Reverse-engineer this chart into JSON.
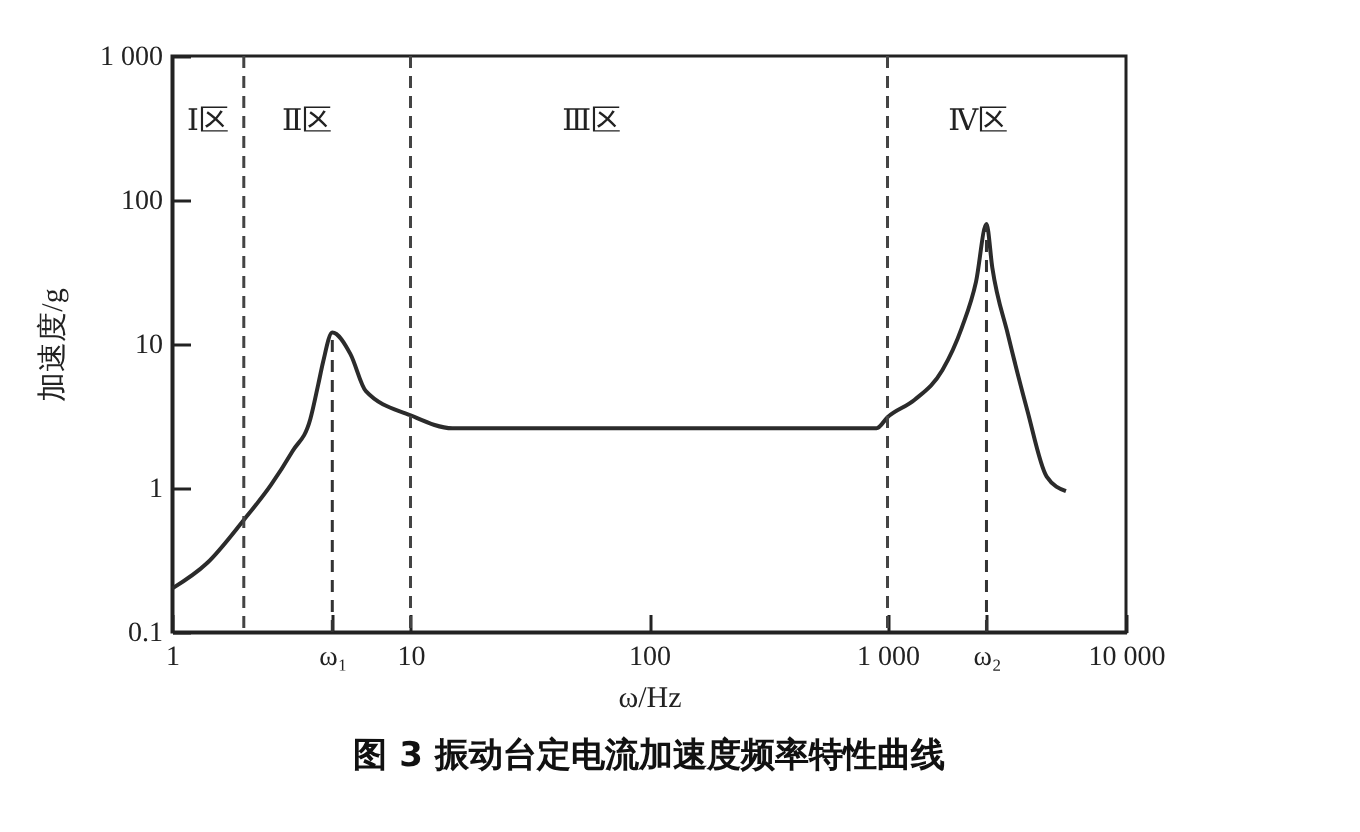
{
  "chart_data": {
    "type": "line",
    "title": "图 3 振动台定电流加速度频率特性曲线",
    "xlabel": "ω/Hz",
    "ylabel": "加速度/g",
    "log": "xy",
    "xlim": [
      1,
      10000
    ],
    "ylim": [
      0.1,
      1000
    ],
    "xticks": [
      1,
      {
        "value": 4.7,
        "label": "ω₁"
      },
      10,
      100,
      {
        "value": 1000,
        "label": "1 000"
      },
      {
        "value": 2600,
        "label": "ω₂"
      },
      {
        "value": 10000,
        "label": "10 000"
      }
    ],
    "yticks": [
      0.1,
      1,
      10,
      100,
      {
        "value": 1000,
        "label": "1 000"
      }
    ],
    "series": [
      {
        "color": "#2b2b2b",
        "x": [
          1,
          1.4,
          2,
          2.6,
          3.2,
          3.8,
          4.1,
          4.3,
          4.7,
          5.6,
          6.5,
          10,
          15,
          900,
          1000,
          1300,
          1700,
          2050,
          2350,
          2600,
          2750,
          3200,
          3850,
          4650,
          5600
        ],
        "values": [
          0.2,
          0.3,
          0.6,
          1.05,
          1.8,
          3,
          5.2,
          7.5,
          12,
          8.5,
          4.7,
          3.2,
          2.6,
          2.6,
          3.1,
          4.1,
          6.6,
          13,
          27,
          68,
          34,
          11.6,
          3.5,
          1.2,
          0.95
        ]
      },
      {
        "type": "line",
        "line_style": "dashed",
        "color": "#333333",
        "x": [
          4.7,
          4.7
        ],
        "values": [
          0.1,
          12
        ]
      },
      {
        "type": "line",
        "line_style": "dashed",
        "color": "#333333",
        "x": [
          2600,
          2600
        ],
        "values": [
          0.1,
          68
        ]
      }
    ],
    "ref_lines": [
      {
        "axis": "x",
        "value": 2,
        "line_style": "dashed",
        "color": "#444444"
      },
      {
        "axis": "x",
        "value": 10,
        "line_style": "dashed",
        "color": "#444444"
      },
      {
        "axis": "x",
        "value": 1000,
        "line_style": "dashed",
        "color": "#444444"
      }
    ],
    "annotations": [
      "Ⅰ区",
      "Ⅱ区",
      "Ⅲ区",
      "Ⅳ区"
    ]
  }
}
